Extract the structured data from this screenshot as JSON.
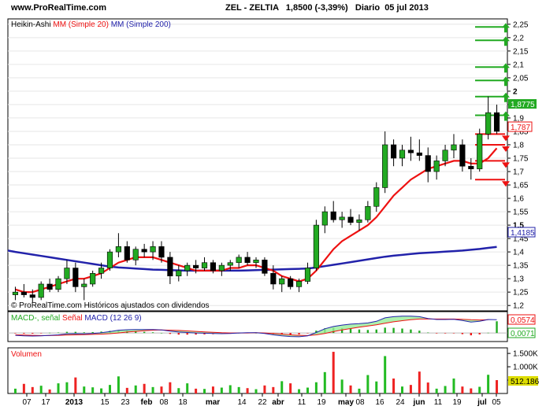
{
  "header": {
    "site": "www.ProRealTime.com",
    "ticker": "ZEL - ZELTIA",
    "price": "1,8500",
    "change": "(-3,39%)",
    "period": "Diario",
    "date": "05 jul 2013"
  },
  "legends": {
    "main_prefix": "Heikin-Ashi",
    "ma20": "MM (Simple 20)",
    "ma200": "MM (Simple 200)",
    "copyright": "© ProRealTime.com  Históricos ajustados con dividendos",
    "macd_a": "MACD-, señal",
    "macd_b": "Señal",
    "macd_c": "MACD (12 26 9)",
    "volume": "Volumen"
  },
  "badges": {
    "last": "1,8775",
    "ma20": "1,787",
    "ma200": "1,4185",
    "macd": "0,0574",
    "signal": "0,0071",
    "volume": "512.186"
  },
  "colors": {
    "up": "#22aa22",
    "down": "#000000",
    "ma20": "#ee1111",
    "ma200": "#2222aa",
    "badge_last": "#22aa22",
    "badge_ma20": "#ee1111",
    "badge_ma200": "#2222aa",
    "badge_volume": "#dddd00"
  },
  "chart_data": {
    "type": "candlestick",
    "price_ticks": [
      "2,25",
      "2,2",
      "2,15",
      "2,1",
      "2,05",
      "2",
      "1,95",
      "1,9",
      "1,85",
      "1,8",
      "1,75",
      "1,7",
      "1,65",
      "1,6",
      "1,55",
      "1,5",
      "1,45",
      "1,4",
      "1,35",
      "1,3",
      "1,25",
      "1,2"
    ],
    "price_range": [
      1.18,
      2.27
    ],
    "x_labels": [
      "07",
      "17",
      "2013",
      "15",
      "23",
      "feb",
      "08",
      "18",
      "mar",
      "14",
      "22",
      "abr",
      "11",
      "19",
      "may",
      "08",
      "16",
      "24",
      "jun",
      "11",
      "19",
      "jul",
      "05"
    ],
    "ohlc": [
      [
        1.24,
        1.27,
        1.22,
        1.25
      ],
      [
        1.25,
        1.28,
        1.23,
        1.24
      ],
      [
        1.24,
        1.26,
        1.21,
        1.23
      ],
      [
        1.23,
        1.29,
        1.22,
        1.28
      ],
      [
        1.28,
        1.3,
        1.25,
        1.26
      ],
      [
        1.26,
        1.31,
        1.25,
        1.3
      ],
      [
        1.3,
        1.37,
        1.28,
        1.34
      ],
      [
        1.34,
        1.36,
        1.25,
        1.27
      ],
      [
        1.27,
        1.3,
        1.22,
        1.28
      ],
      [
        1.28,
        1.33,
        1.27,
        1.32
      ],
      [
        1.32,
        1.36,
        1.3,
        1.34
      ],
      [
        1.34,
        1.41,
        1.33,
        1.4
      ],
      [
        1.4,
        1.47,
        1.38,
        1.42
      ],
      [
        1.42,
        1.44,
        1.36,
        1.37
      ],
      [
        1.37,
        1.42,
        1.35,
        1.41
      ],
      [
        1.41,
        1.43,
        1.38,
        1.4
      ],
      [
        1.4,
        1.44,
        1.37,
        1.42
      ],
      [
        1.42,
        1.44,
        1.36,
        1.38
      ],
      [
        1.38,
        1.4,
        1.28,
        1.31
      ],
      [
        1.31,
        1.35,
        1.29,
        1.33
      ],
      [
        1.33,
        1.36,
        1.31,
        1.35
      ],
      [
        1.35,
        1.37,
        1.32,
        1.34
      ],
      [
        1.34,
        1.38,
        1.33,
        1.36
      ],
      [
        1.36,
        1.37,
        1.32,
        1.33
      ],
      [
        1.33,
        1.36,
        1.31,
        1.35
      ],
      [
        1.35,
        1.37,
        1.33,
        1.36
      ],
      [
        1.36,
        1.39,
        1.34,
        1.38
      ],
      [
        1.38,
        1.4,
        1.35,
        1.36
      ],
      [
        1.36,
        1.38,
        1.34,
        1.37
      ],
      [
        1.37,
        1.38,
        1.31,
        1.32
      ],
      [
        1.32,
        1.35,
        1.26,
        1.28
      ],
      [
        1.28,
        1.31,
        1.25,
        1.3
      ],
      [
        1.3,
        1.31,
        1.26,
        1.27
      ],
      [
        1.27,
        1.3,
        1.25,
        1.29
      ],
      [
        1.29,
        1.36,
        1.28,
        1.34
      ],
      [
        1.34,
        1.52,
        1.33,
        1.5
      ],
      [
        1.5,
        1.57,
        1.47,
        1.55
      ],
      [
        1.55,
        1.59,
        1.51,
        1.52
      ],
      [
        1.52,
        1.55,
        1.49,
        1.53
      ],
      [
        1.53,
        1.56,
        1.5,
        1.51
      ],
      [
        1.51,
        1.54,
        1.48,
        1.52
      ],
      [
        1.52,
        1.59,
        1.51,
        1.57
      ],
      [
        1.57,
        1.66,
        1.55,
        1.64
      ],
      [
        1.64,
        1.85,
        1.62,
        1.8
      ],
      [
        1.8,
        1.82,
        1.72,
        1.75
      ],
      [
        1.75,
        1.8,
        1.72,
        1.78
      ],
      [
        1.78,
        1.83,
        1.74,
        1.77
      ],
      [
        1.77,
        1.82,
        1.74,
        1.76
      ],
      [
        1.76,
        1.79,
        1.66,
        1.7
      ],
      [
        1.7,
        1.76,
        1.67,
        1.74
      ],
      [
        1.74,
        1.8,
        1.72,
        1.78
      ],
      [
        1.78,
        1.84,
        1.75,
        1.8
      ],
      [
        1.8,
        1.82,
        1.7,
        1.72
      ],
      [
        1.72,
        1.75,
        1.67,
        1.71
      ],
      [
        1.71,
        1.86,
        1.7,
        1.84
      ],
      [
        1.84,
        1.98,
        1.82,
        1.92
      ],
      [
        1.92,
        1.95,
        1.84,
        1.85
      ]
    ],
    "ma20": [
      1.26,
      1.25,
      1.25,
      1.26,
      1.27,
      1.28,
      1.29,
      1.3,
      1.3,
      1.31,
      1.32,
      1.34,
      1.36,
      1.37,
      1.38,
      1.38,
      1.38,
      1.37,
      1.36,
      1.35,
      1.34,
      1.33,
      1.33,
      1.33,
      1.33,
      1.34,
      1.34,
      1.35,
      1.35,
      1.34,
      1.33,
      1.31,
      1.3,
      1.29,
      1.3,
      1.33,
      1.37,
      1.41,
      1.44,
      1.46,
      1.48,
      1.5,
      1.53,
      1.57,
      1.61,
      1.64,
      1.67,
      1.69,
      1.71,
      1.72,
      1.73,
      1.74,
      1.74,
      1.73,
      1.73,
      1.75,
      1.787
    ],
    "ma200": [
      1.4,
      1.395,
      1.39,
      1.385,
      1.38,
      1.375,
      1.37,
      1.365,
      1.36,
      1.355,
      1.35,
      1.345,
      1.342,
      1.34,
      1.338,
      1.336,
      1.334,
      1.333,
      1.332,
      1.331,
      1.33,
      1.33,
      1.33,
      1.33,
      1.33,
      1.33,
      1.33,
      1.331,
      1.332,
      1.333,
      1.334,
      1.335,
      1.336,
      1.337,
      1.338,
      1.342,
      1.347,
      1.352,
      1.357,
      1.362,
      1.367,
      1.372,
      1.377,
      1.382,
      1.386,
      1.389,
      1.392,
      1.395,
      1.397,
      1.399,
      1.401,
      1.403,
      1.405,
      1.408,
      1.411,
      1.415,
      1.4185
    ],
    "macd_ticks": [],
    "macd": [
      -0.01,
      -0.012,
      -0.013,
      -0.012,
      -0.01,
      -0.008,
      -0.004,
      -0.003,
      -0.004,
      -0.002,
      0.001,
      0.006,
      0.012,
      0.014,
      0.015,
      0.015,
      0.015,
      0.013,
      0.008,
      0.004,
      0.002,
      0.0,
      -0.001,
      -0.002,
      -0.003,
      -0.002,
      0.0,
      0.001,
      0.001,
      -0.002,
      -0.008,
      -0.012,
      -0.015,
      -0.016,
      -0.012,
      0.002,
      0.018,
      0.028,
      0.034,
      0.038,
      0.04,
      0.043,
      0.05,
      0.065,
      0.07,
      0.072,
      0.072,
      0.07,
      0.062,
      0.058,
      0.058,
      0.059,
      0.054,
      0.047,
      0.05,
      0.058,
      0.0574
    ],
    "signal": [
      -0.008,
      -0.009,
      -0.01,
      -0.011,
      -0.011,
      -0.01,
      -0.009,
      -0.008,
      -0.007,
      -0.006,
      -0.005,
      -0.003,
      0.0,
      0.004,
      0.007,
      0.01,
      0.012,
      0.013,
      0.012,
      0.011,
      0.009,
      0.007,
      0.005,
      0.003,
      0.001,
      0.0,
      0.0,
      0.0,
      0.001,
      0.0,
      -0.002,
      -0.005,
      -0.008,
      -0.01,
      -0.011,
      -0.008,
      -0.002,
      0.006,
      0.013,
      0.019,
      0.025,
      0.03,
      0.035,
      0.042,
      0.048,
      0.053,
      0.057,
      0.06,
      0.06,
      0.06,
      0.06,
      0.06,
      0.059,
      0.057,
      0.056,
      0.057,
      0.0071
    ],
    "volume_ticks": [
      "1.500K",
      "1.000K",
      "500K"
    ],
    "volume": [
      180,
      360,
      240,
      290,
      150,
      380,
      420,
      600,
      260,
      230,
      190,
      320,
      640,
      210,
      300,
      360,
      240,
      260,
      420,
      200,
      380,
      180,
      170,
      260,
      220,
      310,
      240,
      200,
      160,
      300,
      240,
      460,
      380,
      160,
      220,
      420,
      800,
      1560,
      520,
      300,
      180,
      690,
      450,
      1400,
      560,
      260,
      320,
      820,
      410,
      180,
      280,
      560,
      260,
      190,
      250,
      700,
      500
    ]
  }
}
